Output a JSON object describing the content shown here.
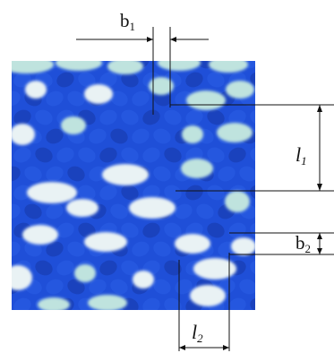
{
  "labels": {
    "b1": {
      "base": "b",
      "sub": "1"
    },
    "l1": {
      "base": "l",
      "sub": "1"
    },
    "b2": {
      "base": "b",
      "sub": "2"
    },
    "l2": {
      "base": "l",
      "sub": "2"
    }
  },
  "colors": {
    "fabric_blue": "#1f4fd8",
    "fabric_dark": "#1538a8",
    "yarn_white": "#e9f2f4",
    "yarn_mint": "#bfe3de",
    "line": "#111111"
  }
}
